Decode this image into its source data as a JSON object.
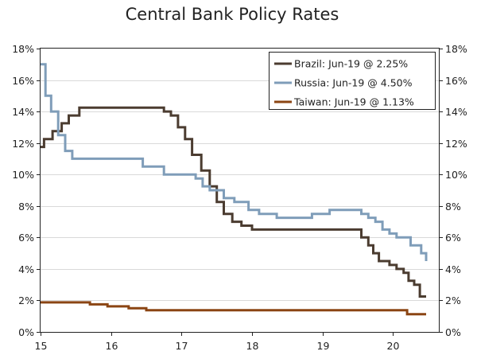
{
  "chart_data": {
    "type": "line",
    "title": "Central Bank Policy Rates",
    "xlabel": "",
    "ylabel": "",
    "xlim": [
      15.0,
      20.65
    ],
    "ylim": [
      0,
      18
    ],
    "x_ticks": [
      {
        "value": 15,
        "label": "15"
      },
      {
        "value": 16,
        "label": "16"
      },
      {
        "value": 17,
        "label": "17"
      },
      {
        "value": 18,
        "label": "18"
      },
      {
        "value": 19,
        "label": "19"
      },
      {
        "value": 20,
        "label": "20"
      }
    ],
    "y_ticks": [
      {
        "value": 0,
        "label": "0%"
      },
      {
        "value": 2,
        "label": "2%"
      },
      {
        "value": 4,
        "label": "4%"
      },
      {
        "value": 6,
        "label": "6%"
      },
      {
        "value": 8,
        "label": "8%"
      },
      {
        "value": 10,
        "label": "10%"
      },
      {
        "value": 12,
        "label": "12%"
      },
      {
        "value": 14,
        "label": "14%"
      },
      {
        "value": 16,
        "label": "16%"
      },
      {
        "value": 18,
        "label": "18%"
      }
    ],
    "legend_position": "top-right",
    "step": true,
    "series": [
      {
        "name": "Brazil",
        "legend_label": "Brazil: Jun-19 @ 2.25%",
        "color": "#4b3c30",
        "x": [
          15.0,
          15.05,
          15.17,
          15.3,
          15.4,
          15.55,
          16.75,
          16.85,
          16.95,
          17.05,
          17.15,
          17.28,
          17.4,
          17.5,
          17.6,
          17.72,
          17.85,
          18.0,
          18.1,
          18.2,
          18.3,
          19.55,
          19.65,
          19.72,
          19.8,
          19.88,
          19.95,
          20.05,
          20.15,
          20.22,
          20.3,
          20.38,
          20.47
        ],
        "y": [
          11.75,
          12.25,
          12.75,
          13.25,
          13.75,
          14.25,
          14.0,
          13.75,
          13.0,
          12.25,
          11.25,
          10.25,
          9.25,
          8.25,
          7.5,
          7.0,
          6.75,
          6.5,
          6.5,
          6.5,
          6.5,
          6.0,
          5.5,
          5.0,
          4.5,
          4.5,
          4.25,
          4.0,
          3.75,
          3.25,
          3.0,
          2.25,
          2.25
        ]
      },
      {
        "name": "Russia",
        "legend_label": "Russia: Jun-19 @ 4.50%",
        "color": "#7f9db9",
        "x": [
          15.0,
          15.07,
          15.15,
          15.25,
          15.35,
          15.45,
          15.55,
          16.45,
          16.75,
          17.2,
          17.3,
          17.4,
          17.6,
          17.75,
          17.95,
          18.1,
          18.2,
          18.35,
          18.85,
          19.1,
          19.45,
          19.55,
          19.65,
          19.75,
          19.85,
          19.95,
          20.05,
          20.25,
          20.4,
          20.47
        ],
        "y": [
          17.0,
          15.0,
          14.0,
          12.5,
          11.5,
          11.0,
          11.0,
          10.5,
          10.0,
          9.75,
          9.25,
          9.0,
          8.5,
          8.25,
          7.75,
          7.5,
          7.5,
          7.25,
          7.5,
          7.75,
          7.75,
          7.5,
          7.25,
          7.0,
          6.5,
          6.25,
          6.0,
          5.5,
          5.0,
          4.5
        ]
      },
      {
        "name": "Taiwan",
        "legend_label": "Taiwan: Jun-19 @ 1.13%",
        "color": "#8b4513",
        "x": [
          15.0,
          15.05,
          15.7,
          15.95,
          16.25,
          16.5,
          20.2,
          20.47
        ],
        "y": [
          1.875,
          1.875,
          1.75,
          1.625,
          1.5,
          1.375,
          1.125,
          1.125
        ]
      }
    ]
  }
}
